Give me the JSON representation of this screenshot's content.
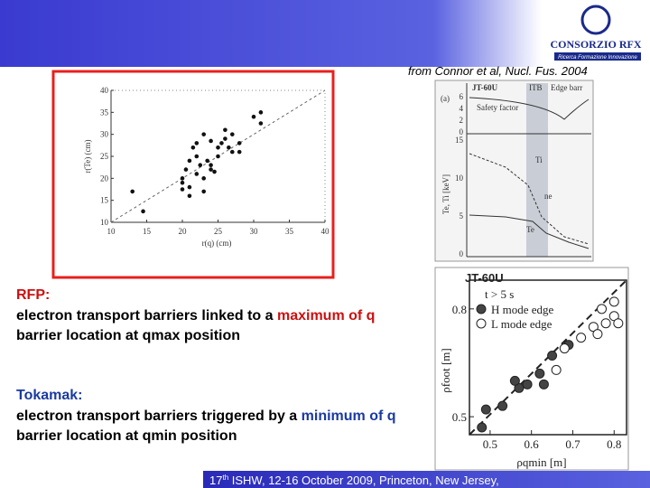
{
  "header": {
    "logo_text": "CONSORZIO RFX",
    "logo_subtext": "Ricerca Formazione Innovazione"
  },
  "citation": "from Connor et al, Nucl. Fus. 2004",
  "rho_label": "ρ",
  "left_plot": {
    "type": "scatter",
    "x_label": "r(q) (cm)",
    "y_label": "r(Te) (cm)",
    "xlim": [
      10,
      40
    ],
    "ylim": [
      10,
      40
    ],
    "xticks": [
      10,
      15,
      20,
      25,
      30,
      35,
      40
    ],
    "yticks": [
      10,
      15,
      20,
      25,
      30,
      35,
      40
    ],
    "x": [
      13,
      14.5,
      20,
      20,
      21,
      21,
      20.5,
      21,
      22,
      21.5,
      22,
      22.5,
      23,
      23,
      24,
      24,
      24.5,
      25,
      25,
      25.5,
      26,
      26.5,
      27,
      27,
      28,
      28,
      30,
      31,
      31,
      20,
      23.5,
      22,
      23,
      26,
      24
    ],
    "y": [
      17,
      12.5,
      20,
      17.5,
      16,
      18,
      22,
      24,
      25,
      27,
      28,
      23,
      20,
      17,
      22,
      23,
      21.5,
      25,
      27,
      28,
      29,
      27,
      30,
      26,
      28,
      26,
      34,
      35,
      32.5,
      19,
      24,
      21,
      30,
      31,
      28.5
    ]
  },
  "profile_panel": {
    "title": "JT-60U",
    "panel": "(a)",
    "regions": [
      "ITB",
      "Edge barr"
    ],
    "q_label": "Safety factor",
    "q_ticks": [
      "6",
      "4",
      "2",
      "0"
    ],
    "t_ticks": [
      "15",
      "10",
      "5",
      "0"
    ],
    "y_label": "Te, Ti [keV]",
    "curve_labels": [
      "Ti",
      "ne",
      "Te"
    ]
  },
  "jt_scatter": {
    "type": "scatter",
    "title": "JT-60U",
    "legend_title": "t > 5 s",
    "x_label": "ρqmin [m]",
    "y_label": "ρfoot [m]",
    "xlim": [
      0.45,
      0.83
    ],
    "ylim": [
      0.45,
      0.88
    ],
    "xticks": [
      0.5,
      0.6,
      0.7,
      0.8
    ],
    "yticks": [
      0.5,
      0.8
    ],
    "series": [
      {
        "name": "H mode edge",
        "color": "#444444",
        "x": [
          0.48,
          0.49,
          0.53,
          0.57,
          0.59,
          0.62,
          0.63,
          0.65,
          0.69,
          0.56
        ],
        "y": [
          0.47,
          0.52,
          0.53,
          0.58,
          0.59,
          0.62,
          0.59,
          0.67,
          0.7,
          0.6
        ]
      },
      {
        "name": "L mode edge",
        "color": "#ffffff",
        "x": [
          0.66,
          0.68,
          0.72,
          0.75,
          0.76,
          0.78,
          0.8,
          0.8,
          0.77,
          0.81
        ],
        "y": [
          0.63,
          0.69,
          0.72,
          0.75,
          0.73,
          0.76,
          0.78,
          0.82,
          0.8,
          0.76
        ]
      }
    ]
  },
  "text": {
    "rfp_heading": "RFP:",
    "rfp_line1": "electron transport barriers linked to a ",
    "rfp_line1_emph": "maximum of q",
    "rfp_line2": "barrier location at qmax position",
    "tok_heading": "Tokamak:",
    "tok_line1": "electron transport barriers triggered by a ",
    "tok_line1_emph": "minimum of q",
    "tok_line2": "barrier location at qmin position"
  },
  "footer": {
    "number": "17",
    "superscript": "th",
    "text": " ISHW, 12-16 October 2009, Princeton, New Jersey,"
  }
}
